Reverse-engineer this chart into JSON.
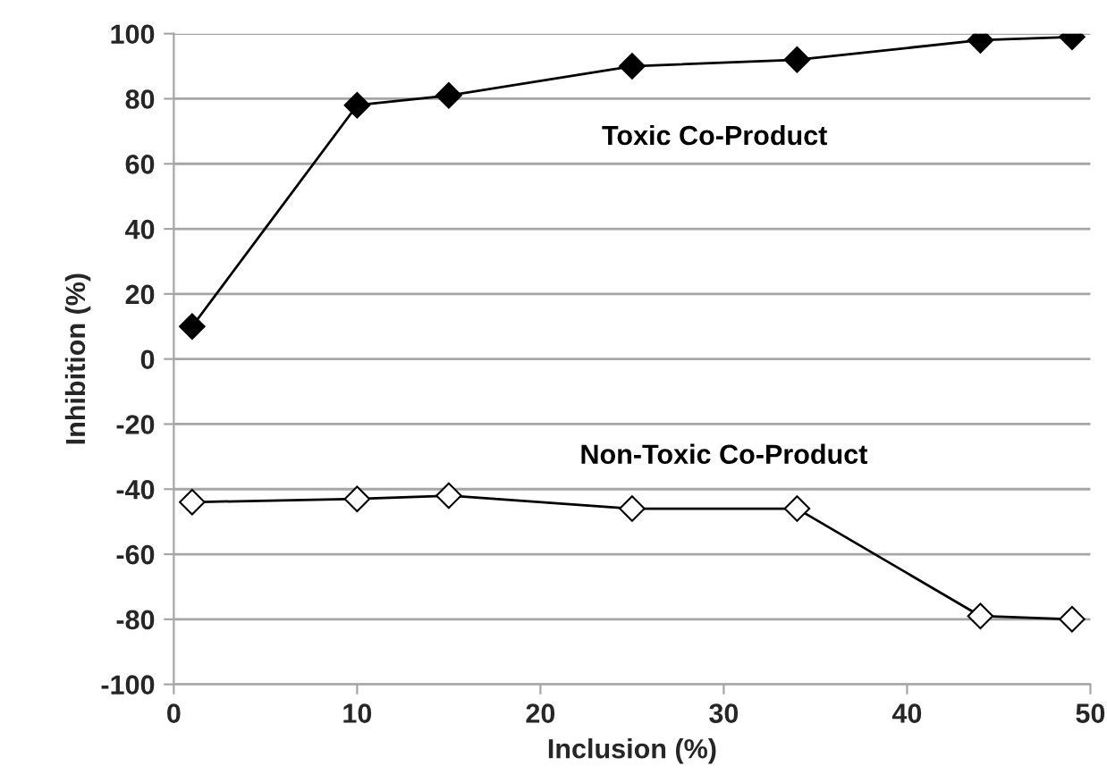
{
  "chart_data": {
    "type": "line",
    "xlabel": "Inclusion (%)",
    "ylabel": "Inhibition (%)",
    "xlim": [
      0,
      50
    ],
    "xticks": [
      0,
      10,
      20,
      30,
      40,
      50
    ],
    "ylim": [
      -100,
      100
    ],
    "yticks": [
      -100,
      -80,
      -60,
      -40,
      -20,
      0,
      20,
      40,
      60,
      80,
      100
    ],
    "grid": "y",
    "legend": false,
    "marker": "diamond",
    "line_style": "solid",
    "series": [
      {
        "name": "Toxic Co-Product",
        "color": "#000000",
        "x": [
          1,
          10,
          15,
          25,
          34,
          44,
          49
        ],
        "values": [
          10,
          78,
          81,
          90,
          92,
          98,
          99
        ]
      },
      {
        "name": "Non-Toxic Co-Product",
        "color": "#000000",
        "x": [
          1,
          10,
          15,
          25,
          34,
          44,
          49
        ],
        "values": [
          -44,
          -43,
          -42,
          -46,
          -46,
          -79,
          -80
        ]
      }
    ]
  }
}
